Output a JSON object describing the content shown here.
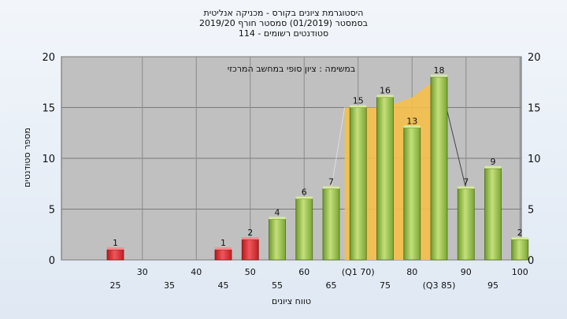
{
  "chart_data": {
    "type": "bar",
    "title_lines": [
      "היסטוגרמת ציונים בקורס - מכניקה אנליטית",
      "בסמסטר  (01/2019)  סמסטר חורף 2019/20",
      "סטודנטים רשומים - 114"
    ],
    "annotation": "במשימה : ציון סופי במחשב המרכזי",
    "xlabel": "טווח ציונים",
    "ylabel": "מספר סטודנטים",
    "ylim": [
      0,
      20
    ],
    "yticks": [
      0,
      5,
      10,
      15,
      20
    ],
    "grid": true,
    "bars": [
      {
        "x": 25,
        "value": 1,
        "color": "red"
      },
      {
        "x": 45,
        "value": 1,
        "color": "red"
      },
      {
        "x": 50,
        "value": 2,
        "color": "red"
      },
      {
        "x": 55,
        "value": 4,
        "color": "green"
      },
      {
        "x": 60,
        "value": 6,
        "color": "green"
      },
      {
        "x": 65,
        "value": 7,
        "color": "green"
      },
      {
        "x": 70,
        "value": 15,
        "color": "green"
      },
      {
        "x": 75,
        "value": 16,
        "color": "green"
      },
      {
        "x": 80,
        "value": 13,
        "color": "green"
      },
      {
        "x": 85,
        "value": 18,
        "color": "green"
      },
      {
        "x": 90,
        "value": 7,
        "color": "green"
      },
      {
        "x": 95,
        "value": 9,
        "color": "green"
      },
      {
        "x": 100,
        "value": 2,
        "color": "green"
      }
    ],
    "xticks_row1": [
      {
        "x": 30,
        "label": "30"
      },
      {
        "x": 40,
        "label": "40"
      },
      {
        "x": 50,
        "label": "50"
      },
      {
        "x": 60,
        "label": "60"
      },
      {
        "x": 70,
        "label": "(Q1 70)"
      },
      {
        "x": 80,
        "label": "80"
      },
      {
        "x": 90,
        "label": "90"
      },
      {
        "x": 100,
        "label": "100"
      }
    ],
    "xticks_row2": [
      {
        "x": 25,
        "label": "25"
      },
      {
        "x": 35,
        "label": "35"
      },
      {
        "x": 45,
        "label": "45"
      },
      {
        "x": 55,
        "label": "55"
      },
      {
        "x": 65,
        "label": "65"
      },
      {
        "x": 75,
        "label": "75"
      },
      {
        "x": 85,
        "label": "(Q3 85)"
      },
      {
        "x": 95,
        "label": "95"
      }
    ],
    "area_band": [
      {
        "x": 67.5,
        "value": 15
      },
      {
        "x": 70,
        "value": 15
      },
      {
        "x": 75,
        "value": 15
      },
      {
        "x": 80,
        "value": 16
      },
      {
        "x": 85,
        "value": 18
      }
    ],
    "colors": {
      "plot_bg": "#c0c0c0",
      "band": "#f5c04a",
      "red": "#d8262a",
      "green": "#8fbf44"
    }
  }
}
